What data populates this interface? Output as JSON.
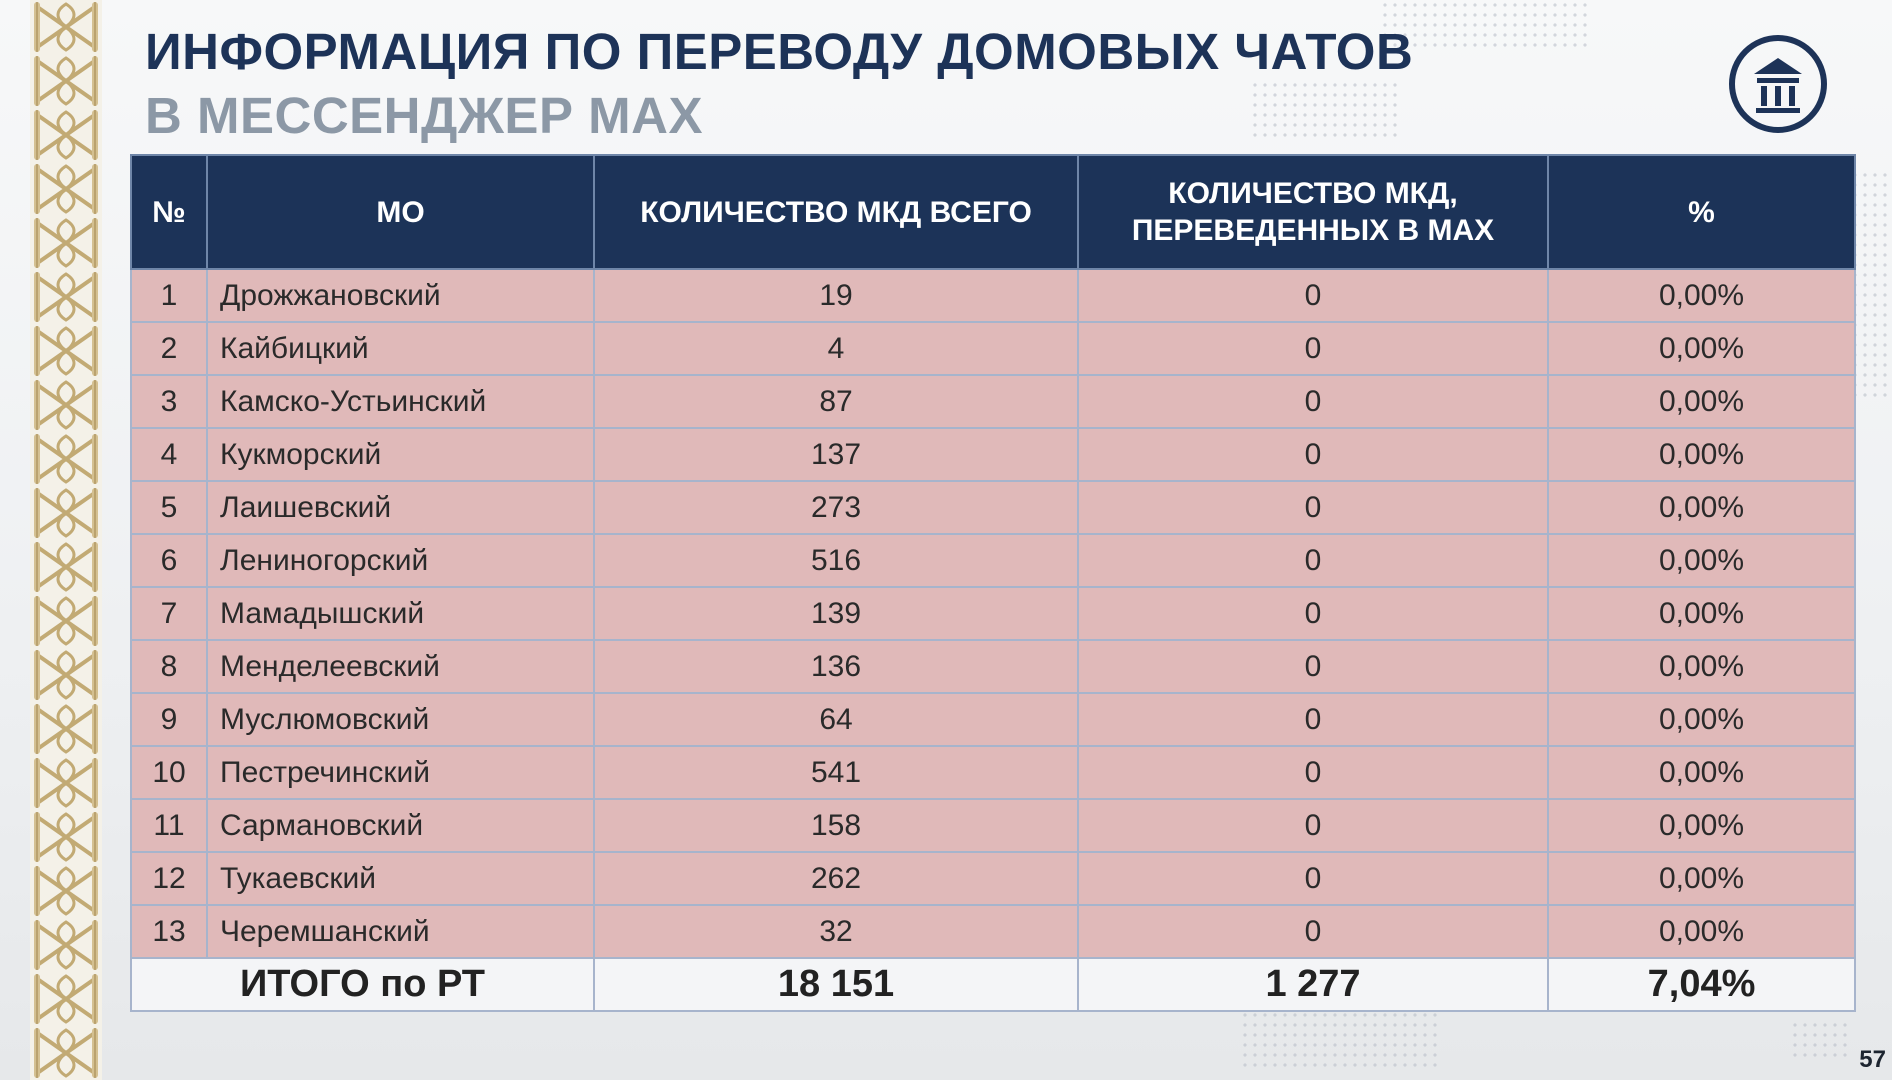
{
  "slide": {
    "title_line1": "ИНФОРМАЦИЯ ПО ПЕРЕВОДУ ДОМОВЫХ ЧАТОВ",
    "title_line2": "В МЕССЕНДЖЕР MAX",
    "logo_icon": "columns-building-icon",
    "page_number": "57"
  },
  "table": {
    "headers": [
      "№",
      "МО",
      "КОЛИЧЕСТВО МКД ВСЕГО",
      "КОЛИЧЕСТВО МКД, ПЕРЕВЕДЕННЫХ В MAX",
      "%"
    ],
    "rows": [
      {
        "num": "1",
        "mo": "Дрожжановский",
        "total": "19",
        "transferred": "0",
        "percent": "0,00%"
      },
      {
        "num": "2",
        "mo": "Кайбицкий",
        "total": "4",
        "transferred": "0",
        "percent": "0,00%"
      },
      {
        "num": "3",
        "mo": "Камско-Устьинский",
        "total": "87",
        "transferred": "0",
        "percent": "0,00%"
      },
      {
        "num": "4",
        "mo": "Кукморский",
        "total": "137",
        "transferred": "0",
        "percent": "0,00%"
      },
      {
        "num": "5",
        "mo": "Лаишевский",
        "total": "273",
        "transferred": "0",
        "percent": "0,00%"
      },
      {
        "num": "6",
        "mo": "Лениногорский",
        "total": "516",
        "transferred": "0",
        "percent": "0,00%"
      },
      {
        "num": "7",
        "mo": "Мамадышский",
        "total": "139",
        "transferred": "0",
        "percent": "0,00%"
      },
      {
        "num": "8",
        "mo": "Менделеевский",
        "total": "136",
        "transferred": "0",
        "percent": "0,00%"
      },
      {
        "num": "9",
        "mo": "Муслюмовский",
        "total": "64",
        "transferred": "0",
        "percent": "0,00%"
      },
      {
        "num": "10",
        "mo": "Пестречинский",
        "total": "541",
        "transferred": "0",
        "percent": "0,00%"
      },
      {
        "num": "11",
        "mo": "Сармановский",
        "total": "158",
        "transferred": "0",
        "percent": "0,00%"
      },
      {
        "num": "12",
        "mo": "Тукаевский",
        "total": "262",
        "transferred": "0",
        "percent": "0,00%"
      },
      {
        "num": "13",
        "mo": "Черемшанский",
        "total": "32",
        "transferred": "0",
        "percent": "0,00%"
      }
    ],
    "total_row": {
      "label": "ИТОГО по РТ",
      "total": "18 151",
      "transferred": "1 277",
      "percent": "7,04%"
    }
  },
  "colors": {
    "header_bg": "#1c3358",
    "row_bg": "#e0b9b9",
    "title_primary": "#1d3358",
    "title_secondary": "#8c98a6",
    "ornament_gold": "#c2aa74"
  }
}
